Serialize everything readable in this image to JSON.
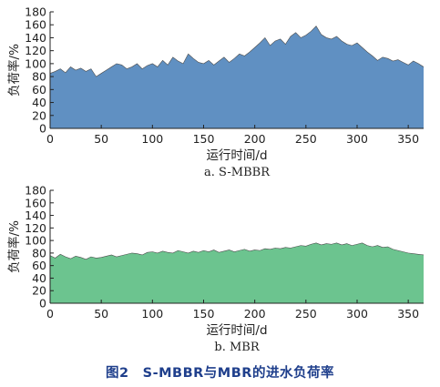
{
  "figure_caption": "图2　S-MBBR与MBR的进水负荷率",
  "chart_data": [
    {
      "type": "area",
      "subtitle": "a. S-MBBR",
      "xlabel": "运行时间/d",
      "ylabel": "负荷率/%",
      "xlim": [
        0,
        365
      ],
      "ylim": [
        0,
        180
      ],
      "xticks": [
        0,
        50,
        100,
        150,
        200,
        250,
        300,
        350
      ],
      "yticks": [
        0,
        20,
        40,
        60,
        80,
        100,
        120,
        140,
        160,
        180
      ],
      "grid": false,
      "color": "#6090c2",
      "x": [
        0,
        5,
        10,
        15,
        20,
        25,
        30,
        35,
        40,
        45,
        50,
        55,
        60,
        65,
        70,
        75,
        80,
        85,
        90,
        95,
        100,
        105,
        110,
        115,
        120,
        125,
        130,
        135,
        140,
        145,
        150,
        155,
        160,
        165,
        170,
        175,
        180,
        185,
        190,
        195,
        200,
        205,
        210,
        215,
        220,
        225,
        230,
        235,
        240,
        245,
        250,
        255,
        260,
        265,
        270,
        275,
        280,
        285,
        290,
        295,
        300,
        305,
        310,
        315,
        320,
        325,
        330,
        335,
        340,
        345,
        350,
        355,
        360,
        365
      ],
      "values": [
        85,
        88,
        92,
        86,
        95,
        90,
        93,
        88,
        92,
        80,
        85,
        90,
        95,
        100,
        98,
        92,
        95,
        100,
        92,
        97,
        100,
        95,
        105,
        98,
        110,
        104,
        100,
        115,
        108,
        102,
        100,
        105,
        98,
        104,
        110,
        102,
        108,
        115,
        112,
        118,
        125,
        132,
        140,
        128,
        135,
        138,
        130,
        142,
        148,
        140,
        144,
        150,
        158,
        145,
        140,
        138,
        142,
        135,
        130,
        128,
        132,
        125,
        118,
        112,
        105,
        110,
        108,
        104,
        106,
        102,
        98,
        104,
        100,
        95
      ]
    },
    {
      "type": "area",
      "subtitle": "b. MBR",
      "xlabel": "运行时间/d",
      "ylabel": "负荷率/%",
      "xlim": [
        0,
        365
      ],
      "ylim": [
        0,
        180
      ],
      "xticks": [
        0,
        50,
        100,
        150,
        200,
        250,
        300,
        350
      ],
      "yticks": [
        0,
        20,
        40,
        60,
        80,
        100,
        120,
        140,
        160,
        180
      ],
      "grid": false,
      "color": "#6cc48f",
      "x": [
        0,
        5,
        10,
        15,
        20,
        25,
        30,
        35,
        40,
        45,
        50,
        55,
        60,
        65,
        70,
        75,
        80,
        85,
        90,
        95,
        100,
        105,
        110,
        115,
        120,
        125,
        130,
        135,
        140,
        145,
        150,
        155,
        160,
        165,
        170,
        175,
        180,
        185,
        190,
        195,
        200,
        205,
        210,
        215,
        220,
        225,
        230,
        235,
        240,
        245,
        250,
        255,
        260,
        265,
        270,
        275,
        280,
        285,
        290,
        295,
        300,
        305,
        310,
        315,
        320,
        325,
        330,
        335,
        340,
        345,
        350,
        355,
        360,
        365
      ],
      "values": [
        76,
        72,
        78,
        74,
        71,
        75,
        73,
        70,
        74,
        72,
        73,
        75,
        77,
        74,
        76,
        78,
        80,
        79,
        77,
        81,
        82,
        80,
        83,
        81,
        80,
        84,
        82,
        80,
        83,
        81,
        84,
        82,
        85,
        81,
        83,
        85,
        82,
        84,
        86,
        83,
        85,
        84,
        87,
        86,
        88,
        87,
        89,
        88,
        90,
        92,
        91,
        94,
        96,
        93,
        95,
        94,
        96,
        93,
        95,
        92,
        94,
        96,
        92,
        90,
        92,
        89,
        90,
        86,
        84,
        82,
        80,
        79,
        78,
        77
      ]
    }
  ]
}
